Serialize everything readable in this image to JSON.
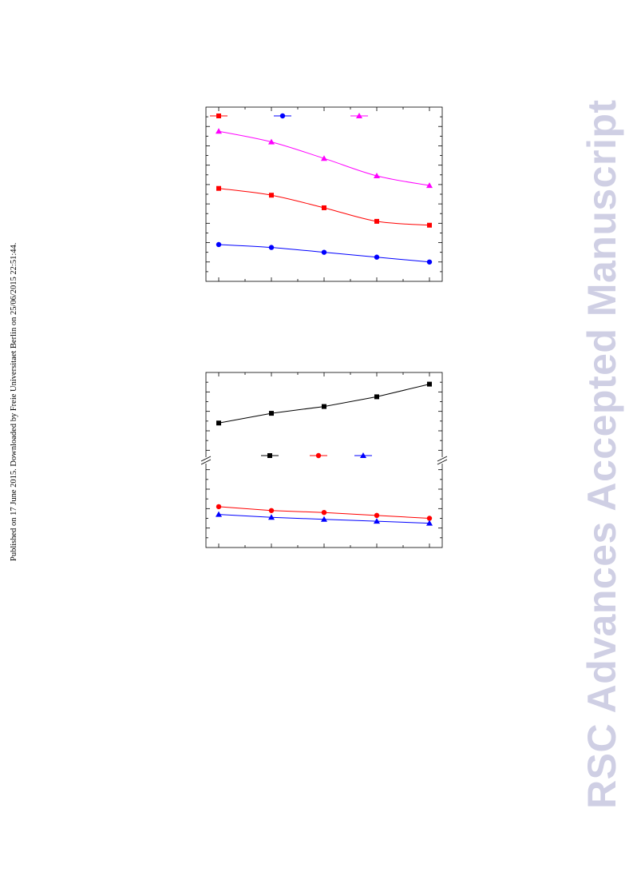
{
  "side_note": "Published on 17 June 2015. Downloaded by Freie Universitaet Berlin on 25/06/2015 22:51:44.",
  "watermark": "RSC Advances Accepted Manuscript",
  "chart_data": [
    {
      "type": "line",
      "title": "",
      "xlabel": "",
      "ylabel": "",
      "x": [
        1,
        2,
        3,
        4,
        5
      ],
      "ylim": [
        0,
        9
      ],
      "legend": "top",
      "series": [
        {
          "color": "#ff0000",
          "marker": "square",
          "values": [
            4.8,
            4.45,
            3.8,
            3.1,
            2.9
          ]
        },
        {
          "color": "#0000ff",
          "marker": "circle",
          "values": [
            1.9,
            1.75,
            1.5,
            1.25,
            1.0
          ]
        },
        {
          "color": "#ff00ff",
          "marker": "triangle",
          "values": [
            7.75,
            7.2,
            6.35,
            5.45,
            4.95
          ]
        }
      ]
    },
    {
      "type": "line",
      "title": "",
      "xlabel": "",
      "ylabel": "",
      "x": [
        1,
        2,
        3,
        4,
        5
      ],
      "ylim": [
        0,
        9
      ],
      "broken_axis": true,
      "legend": "middle",
      "series": [
        {
          "color": "#000000",
          "marker": "square",
          "values": [
            6.4,
            6.9,
            7.25,
            7.75,
            8.4
          ]
        },
        {
          "color": "#ff0000",
          "marker": "circle",
          "values": [
            2.1,
            1.9,
            1.8,
            1.65,
            1.5
          ]
        },
        {
          "color": "#0000ff",
          "marker": "triangle",
          "values": [
            1.7,
            1.55,
            1.45,
            1.35,
            1.25
          ]
        }
      ]
    }
  ]
}
